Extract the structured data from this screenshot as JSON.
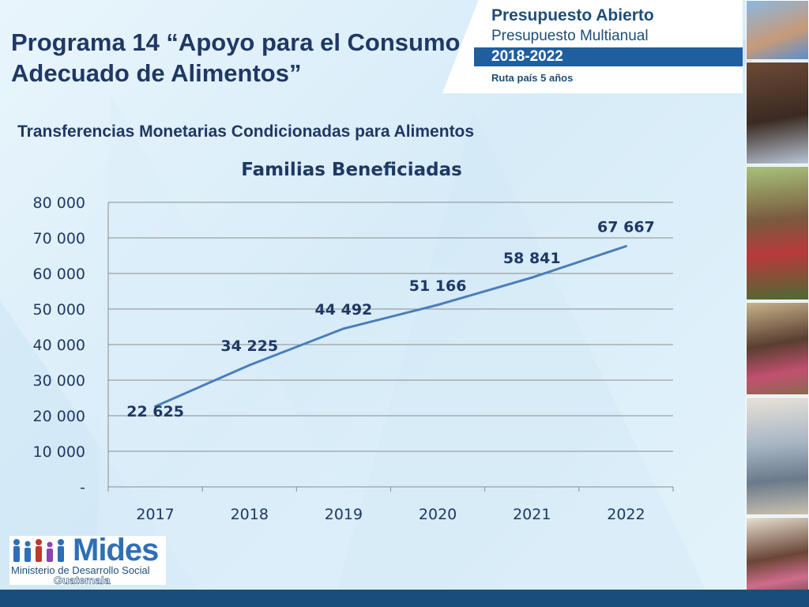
{
  "slide": {
    "title": "Programa 14 “Apoyo para el Consumo Adecuado de Alimentos”",
    "subtitle": "Transferencias Monetarias Condicionadas para Alimentos"
  },
  "banner": {
    "title": "Presupuesto Abierto",
    "subtitle": "Presupuesto Multianual",
    "years": "2018-2022",
    "route": "Ruta país 5 años"
  },
  "logo": {
    "name": "Mides",
    "ministry": "Ministerio de Desarrollo Social",
    "country": "Guatemala"
  },
  "colors": {
    "title": "#1f3864",
    "line": "#4a7ebb",
    "accent": "#1f5fa0",
    "bottom_bar": "#1a4e7a"
  },
  "chart_data": {
    "type": "line",
    "title": "Familias Beneficiadas",
    "categories": [
      "2017",
      "2018",
      "2019",
      "2020",
      "2021",
      "2022"
    ],
    "values": [
      22625,
      34225,
      44492,
      51166,
      58841,
      67667
    ],
    "data_labels": [
      "22 625",
      "34 225",
      "44 492",
      "51 166",
      "58 841",
      "67 667"
    ],
    "ylim": [
      0,
      80000
    ],
    "yticks": [
      0,
      10000,
      20000,
      30000,
      40000,
      50000,
      60000,
      70000,
      80000
    ],
    "ytick_labels": [
      "-",
      "10 000",
      "20 000",
      "30 000",
      "40 000",
      "50 000",
      "60 000",
      "70 000",
      "80 000"
    ],
    "grid": true,
    "legend": "none"
  }
}
